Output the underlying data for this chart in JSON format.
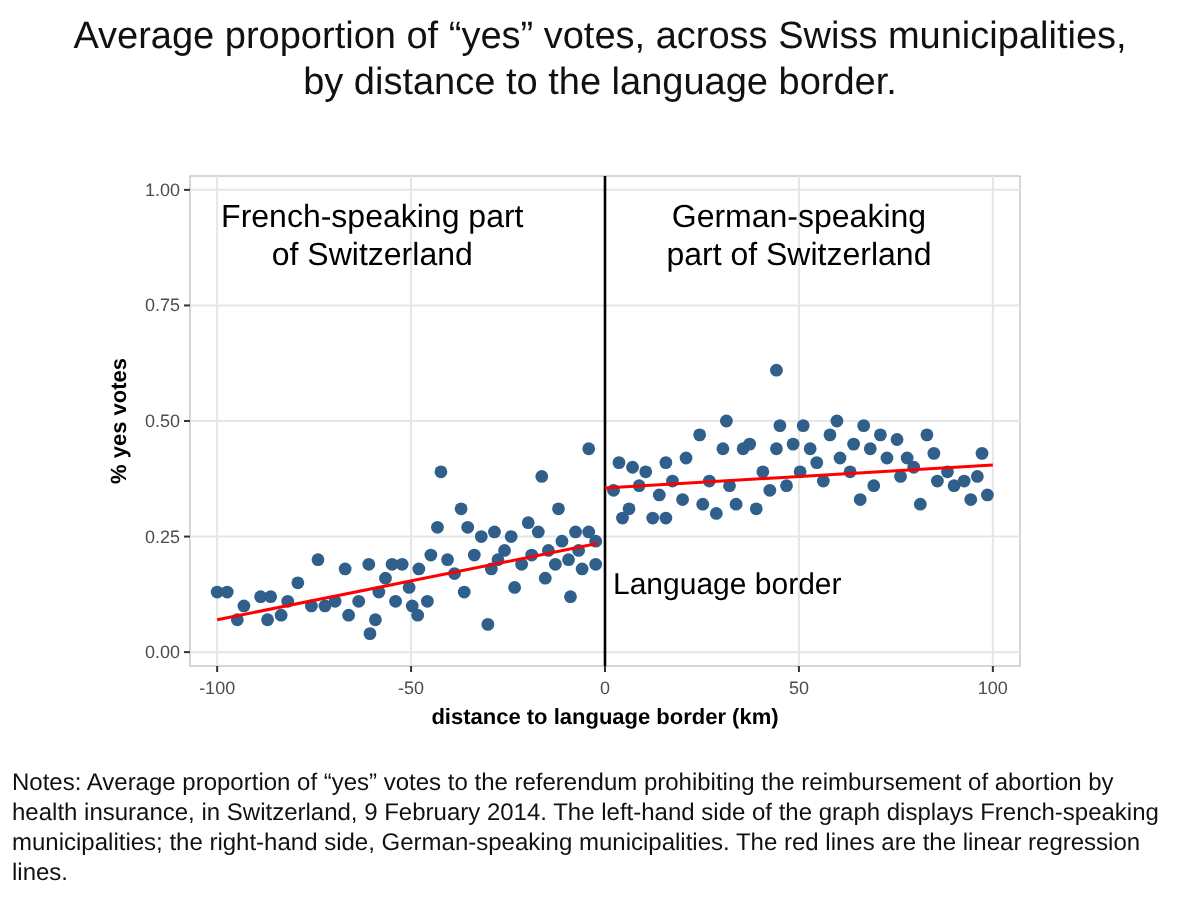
{
  "chart_data": {
    "type": "scatter",
    "title": "Average proportion of “yes” votes, across Swiss municipalities, by distance to the language border.",
    "xlabel": "distance to language border (km)",
    "ylabel": "% yes votes",
    "xlim": [
      -107,
      107
    ],
    "ylim": [
      -0.03,
      1.03
    ],
    "xticks": [
      -100,
      -50,
      0,
      50,
      100
    ],
    "yticks": [
      {
        "value": 0,
        "label": "0.00"
      },
      {
        "value": 0.25,
        "label": "0.25"
      },
      {
        "value": 0.5,
        "label": "0.50"
      },
      {
        "value": 0.75,
        "label": "0.75"
      },
      {
        "value": 1,
        "label": "1.00"
      }
    ],
    "grid": true,
    "ref_lines": [
      {
        "axis": "x",
        "value": 0,
        "label": "Language border",
        "color": "#000000"
      }
    ],
    "annotations": [
      "French-speaking part\nof Switzerland",
      "German-speaking\npart of Switzerland",
      "Notes: Average proportion of “yes” votes to the referendum prohibiting the reimbursement of abortion by health insurance, in Switzerland, 9 February 2014. The left-hand side of the graph displays French-speaking municipalities; the right-hand side, German-speaking municipalities. The red lines are the linear regression lines."
    ],
    "series": [
      {
        "color": "#2f5f8a",
        "marker": "circle",
        "x": [
          -100,
          -97.4,
          -94.8,
          -93.1,
          -88.8,
          -86.2,
          -87,
          -83.5,
          -81.8,
          -79.2,
          -75.7,
          -74,
          -72.2,
          -69.6,
          -67,
          -66.1,
          -63.5,
          -60.9,
          -60.6,
          -59.2,
          -58.3,
          -56.6,
          -54.9,
          -54,
          -52.3,
          -50.5,
          -49.7,
          -48,
          -48.3,
          -45.8,
          -44.9,
          -43.2,
          -42.3,
          -40.6,
          -38.8,
          -37.1,
          -36.3,
          -35.4,
          -33.7,
          -31.9,
          -30.2,
          -29.3,
          -28.5,
          -27.6,
          -25.9,
          -24.2,
          -23.3,
          -21.5,
          -19.8,
          -18.9,
          -17.2,
          -16.3,
          -15.4,
          -14.6,
          -12.8,
          -12,
          -11.1,
          -9.4,
          -8.9,
          -7.6,
          -6.8,
          -5.9,
          -4.2,
          -4.2,
          -2.4,
          -2.4,
          2.2,
          3.6,
          4.5,
          6.2,
          7.1,
          8.8,
          10.5,
          12.3,
          14,
          15.7,
          15.7,
          17.4,
          20,
          20.9,
          24.4,
          25.2,
          26.9,
          28.7,
          30.4,
          31.3,
          32.1,
          33.8,
          35.6,
          37.3,
          39,
          40.7,
          42.5,
          44.2,
          44.2,
          45.1,
          46.8,
          48.5,
          50.3,
          51.1,
          52.9,
          54.6,
          56.3,
          58,
          59.8,
          60.6,
          63.2,
          64.1,
          65.8,
          66.7,
          68.4,
          69.3,
          71,
          72.7,
          75.3,
          76.2,
          77.9,
          79.6,
          81.3,
          83,
          84.8,
          85.7,
          88.3,
          90,
          92.6,
          94.3,
          96,
          97.2,
          98.6
        ],
        "values": [
          0.13,
          0.13,
          0.07,
          0.1,
          0.12,
          0.12,
          0.07,
          0.08,
          0.11,
          0.15,
          0.1,
          0.2,
          0.1,
          0.11,
          0.18,
          0.08,
          0.11,
          0.19,
          0.04,
          0.07,
          0.13,
          0.16,
          0.19,
          0.11,
          0.19,
          0.14,
          0.1,
          0.18,
          0.08,
          0.11,
          0.21,
          0.27,
          0.39,
          0.2,
          0.17,
          0.31,
          0.13,
          0.27,
          0.21,
          0.25,
          0.06,
          0.18,
          0.26,
          0.2,
          0.22,
          0.25,
          0.14,
          0.19,
          0.28,
          0.21,
          0.26,
          0.38,
          0.16,
          0.22,
          0.19,
          0.31,
          0.24,
          0.2,
          0.12,
          0.26,
          0.22,
          0.18,
          0.44,
          0.26,
          0.19,
          0.24,
          0.35,
          0.41,
          0.29,
          0.31,
          0.4,
          0.36,
          0.39,
          0.29,
          0.34,
          0.41,
          0.29,
          0.37,
          0.33,
          0.42,
          0.47,
          0.32,
          0.37,
          0.3,
          0.44,
          0.5,
          0.36,
          0.32,
          0.44,
          0.45,
          0.31,
          0.39,
          0.35,
          0.61,
          0.44,
          0.49,
          0.36,
          0.45,
          0.39,
          0.49,
          0.44,
          0.41,
          0.37,
          0.47,
          0.5,
          0.42,
          0.39,
          0.45,
          0.33,
          0.49,
          0.44,
          0.36,
          0.47,
          0.42,
          0.46,
          0.38,
          0.42,
          0.4,
          0.32,
          0.47,
          0.43,
          0.37,
          0.39,
          0.36,
          0.37,
          0.33,
          0.38,
          0.43,
          0.34
        ]
      },
      {
        "type": "line",
        "color": "#ff0000",
        "x": [
          -100,
          -2
        ],
        "values": [
          0.07,
          0.235
        ]
      },
      {
        "type": "line",
        "color": "#ff0000",
        "x": [
          0,
          100
        ],
        "values": [
          0.355,
          0.405
        ]
      }
    ]
  }
}
